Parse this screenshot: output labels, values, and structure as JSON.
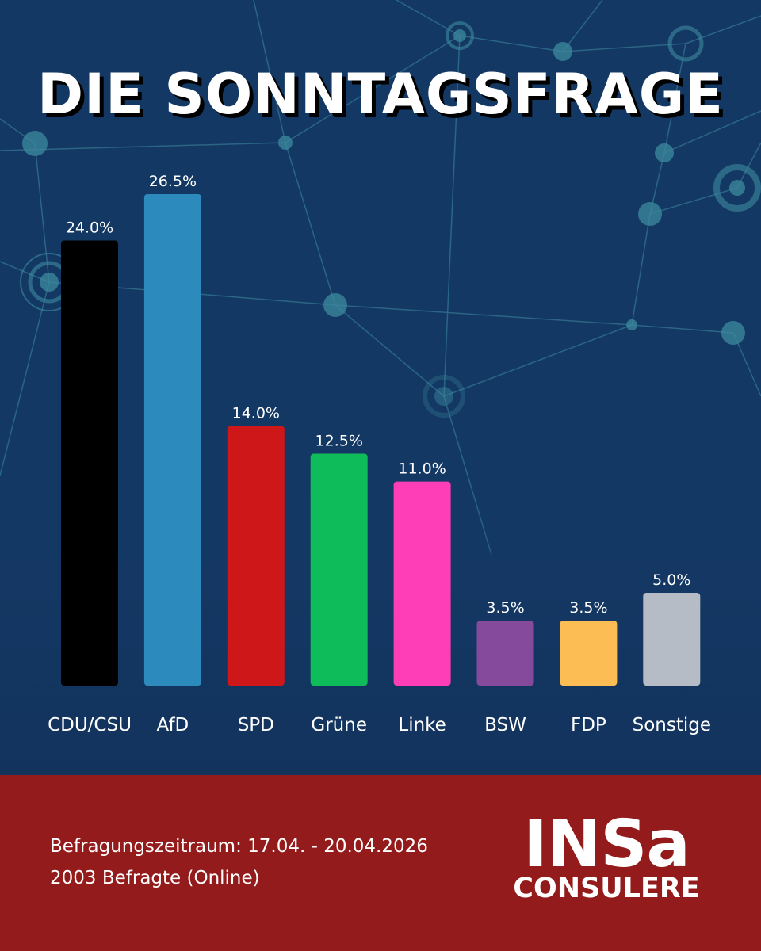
{
  "header": {
    "title": "DIE SONNTAGSFRAGE"
  },
  "chart_data": {
    "type": "bar",
    "categories": [
      "CDU/CSU",
      "AfD",
      "SPD",
      "Grüne",
      "Linke",
      "BSW",
      "FDP",
      "Sonstige"
    ],
    "values": [
      24.0,
      26.5,
      14.0,
      12.5,
      11.0,
      3.5,
      3.5,
      5.0
    ],
    "value_labels": [
      "24.0%",
      "26.5%",
      "14.0%",
      "12.5%",
      "11.0%",
      "3.5%",
      "3.5%",
      "5.0%"
    ],
    "colors": [
      "#000000",
      "#2c8abc",
      "#ce1719",
      "#0ebc5a",
      "#fd3eb6",
      "#864a9d",
      "#fcbe54",
      "#b5bcc5"
    ],
    "title": "DIE SONNTAGSFRAGE",
    "xlabel": "",
    "ylabel": "",
    "ylim": [
      0,
      26.5
    ],
    "grid": false
  },
  "footer": {
    "period": "Befragungszeitraum: 17.04. - 20.04.2026",
    "respondents": "2003 Befragte (Online)",
    "logo_top": "INSa",
    "logo_bottom": "CONSULERE"
  }
}
